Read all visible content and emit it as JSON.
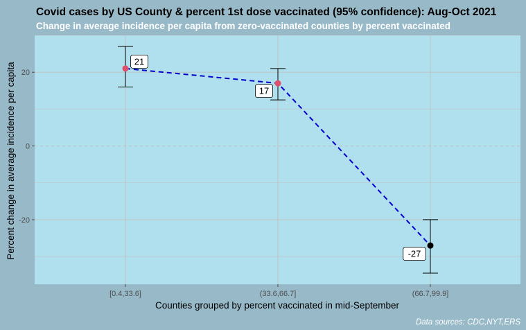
{
  "chart_data": {
    "type": "line",
    "title": "Covid cases by US County & percent 1st dose vaccinated (95% confidence): Aug-Oct 2021",
    "subtitle": "Change in average incidence per capita from zero-vaccinated counties by percent vaccinated",
    "xlabel": "Counties grouped by percent vaccinated in mid-September",
    "ylabel": "Percent change in average incidence per capita",
    "caption": "Data sources: CDC,NYT,ERS",
    "categories": [
      "[0.4,33.6]",
      "(33.6,66.7]",
      "(66.7,99.9]"
    ],
    "series": [
      {
        "values": [
          21,
          17,
          -27
        ],
        "ci_low": [
          16,
          12.5,
          -34.5
        ],
        "ci_high": [
          27,
          21,
          -20
        ],
        "labels": [
          "21",
          "17",
          "-27"
        ],
        "point_colors": [
          "#e0506a",
          "#e0506a",
          "#000000"
        ]
      }
    ],
    "yticks": [
      {
        "value": 20,
        "label": "20"
      },
      {
        "value": 0,
        "label": "0"
      },
      {
        "value": -20,
        "label": "-20"
      }
    ],
    "ylim": [
      -37.5,
      30
    ],
    "grid": true,
    "legend": "none",
    "colors": {
      "background": "#97b9c8",
      "panel": "#b0dfed",
      "grid": "#c0c0c0",
      "line": "#0000cd",
      "errorbar": "#000000"
    }
  }
}
